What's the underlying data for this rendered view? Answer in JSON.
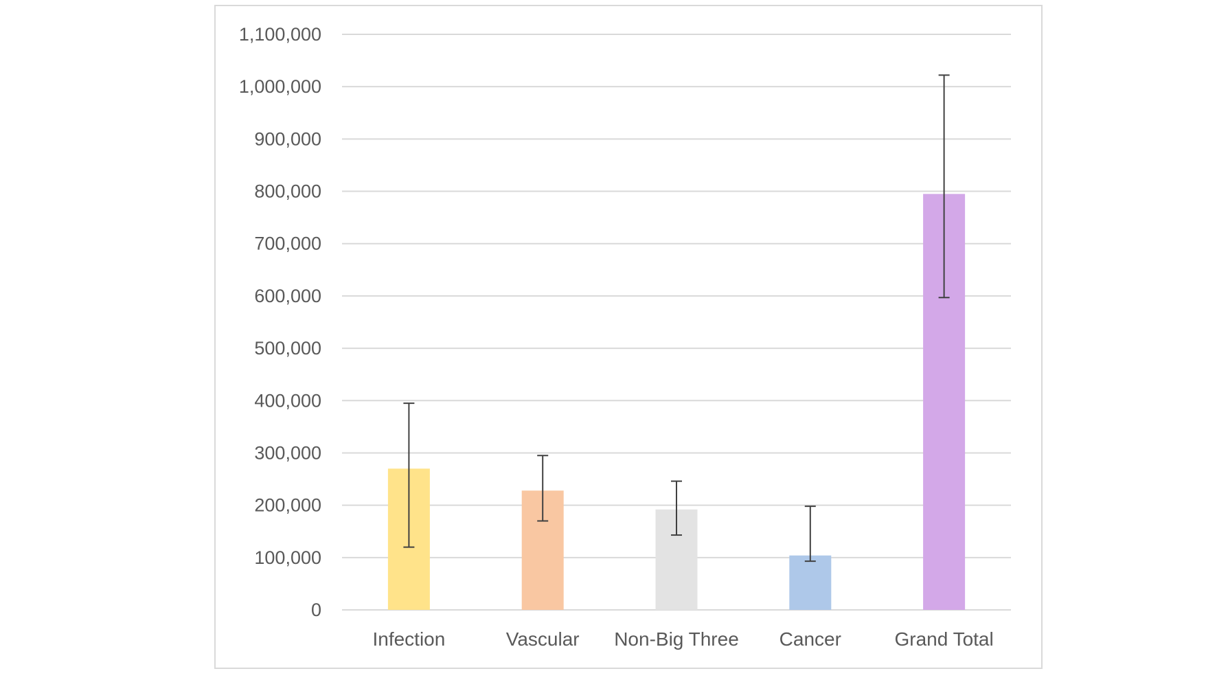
{
  "chart_data": {
    "type": "bar",
    "title": "",
    "xlabel": "",
    "ylabel": "",
    "ylim": [
      0,
      1100000
    ],
    "y_ticks": [
      0,
      100000,
      200000,
      300000,
      400000,
      500000,
      600000,
      700000,
      800000,
      900000,
      1000000,
      1100000
    ],
    "y_tick_labels": [
      "0",
      "100,000",
      "200,000",
      "300,000",
      "400,000",
      "500,000",
      "600,000",
      "700,000",
      "800,000",
      "900,000",
      "1,000,000",
      "1,100,000"
    ],
    "grid": true,
    "legend": "none",
    "categories": [
      "Infection",
      "Vascular",
      "Non-Big Three",
      "Cancer",
      "Grand Total"
    ],
    "values": [
      270000,
      228000,
      192000,
      104000,
      795000
    ],
    "error_low": [
      120000,
      170000,
      143000,
      93000,
      597000
    ],
    "error_high": [
      395000,
      295000,
      246000,
      198000,
      1022000
    ],
    "colors": [
      "#ffe38a",
      "#f9c7a2",
      "#e3e3e3",
      "#aec8e9",
      "#d3a8e8"
    ],
    "gridline_color": "#d9d9d9",
    "text_color": "#595959",
    "errorbar_color": "#404040"
  }
}
